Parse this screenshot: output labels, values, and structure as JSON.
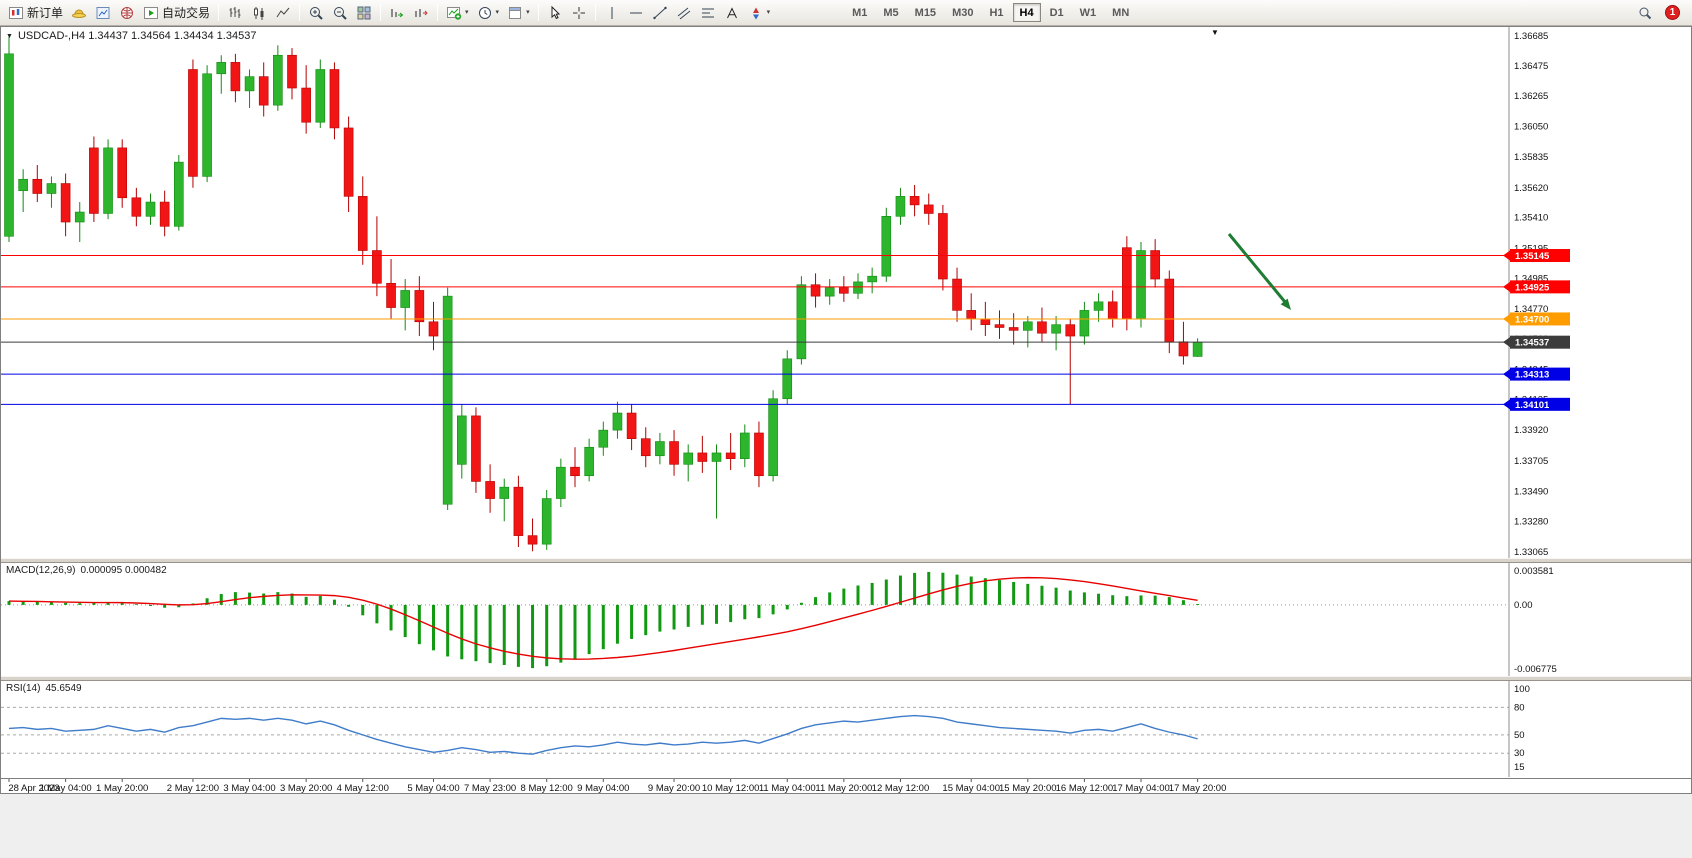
{
  "toolbar": {
    "new_order_label": "新订单",
    "autotrade_label": "自动交易",
    "timeframes": [
      "M1",
      "M5",
      "M15",
      "M30",
      "H1",
      "H4",
      "D1",
      "W1",
      "MN"
    ],
    "active_timeframe": "H4",
    "notification_count": "1",
    "icon_names": [
      "new-order-icon",
      "profiles-icon",
      "market-watch-icon",
      "news-icon",
      "autotrade-icon",
      "bar-chart-icon",
      "candlestick-chart-icon",
      "line-chart-icon",
      "zoom-in-icon",
      "zoom-out-icon",
      "tile-windows-icon",
      "auto-scroll-icon",
      "chart-shift-icon",
      "indicators-icon",
      "periods-icon",
      "templates-icon",
      "cursor-icon",
      "crosshair-icon",
      "vertical-line-icon",
      "horizontal-line-icon",
      "trendline-icon",
      "channel-icon",
      "fibonacci-icon",
      "text-icon",
      "arrows-icon",
      "search-icon"
    ]
  },
  "chart": {
    "symbol_ohlc_label": "USDCAD-,H4 1.34437 1.34564 1.34434 1.34537",
    "symbol": "USDCAD-",
    "period": "H4",
    "open": "1.34437",
    "high": "1.34564",
    "low": "1.34434",
    "close": "1.34537"
  },
  "colors": {
    "bull": "#2db52d",
    "bull_border": "#128a12",
    "bear": "#f21515",
    "bear_border": "#b30000",
    "macd_histogram": "#119a11",
    "macd_signal": "#e80000",
    "rsi_line": "#3f7cc9",
    "axis_text": "#111111",
    "arrow": "#1e7d32"
  },
  "price_axis": {
    "ticks": [
      "1.36685",
      "1.36475",
      "1.36265",
      "1.36050",
      "1.35835",
      "1.35620",
      "1.35410",
      "1.35195",
      "1.34985",
      "1.34770",
      "1.34560",
      "1.34345",
      "1.34135",
      "1.33920",
      "1.33705",
      "1.33490",
      "1.33280",
      "1.33065"
    ]
  },
  "hlines": [
    {
      "label": "1.35145",
      "price": 1.35145,
      "color": "#ff0000",
      "current": false
    },
    {
      "label": "1.34925",
      "price": 1.34925,
      "color": "#ff0000",
      "current": false
    },
    {
      "label": "1.34700",
      "price": 1.347,
      "color": "#ff9c00",
      "current": false
    },
    {
      "label": "1.34537",
      "price": 1.34537,
      "color": "#3c3c3c",
      "current": true
    },
    {
      "label": "1.34313",
      "price": 1.34313,
      "color": "#0000e6",
      "current": false
    },
    {
      "label": "1.34101",
      "price": 1.34101,
      "color": "#0000e6",
      "current": false
    }
  ],
  "time_axis": {
    "labels": [
      {
        "i": 0,
        "t": "28 Apr 2023"
      },
      {
        "i": 4,
        "t": "1 May 04:00"
      },
      {
        "i": 8,
        "t": "1 May 20:00"
      },
      {
        "i": 13,
        "t": "2 May 12:00"
      },
      {
        "i": 17,
        "t": "3 May 04:00"
      },
      {
        "i": 21,
        "t": "3 May 20:00"
      },
      {
        "i": 25,
        "t": "4 May 12:00"
      },
      {
        "i": 30,
        "t": "5 May 04:00"
      },
      {
        "i": 34,
        "t": "7 May 23:00"
      },
      {
        "i": 38,
        "t": "8 May 12:00"
      },
      {
        "i": 42,
        "t": "9 May 04:00"
      },
      {
        "i": 47,
        "t": "9 May 20:00"
      },
      {
        "i": 51,
        "t": "10 May 12:00"
      },
      {
        "i": 55,
        "t": "11 May 04:00"
      },
      {
        "i": 59,
        "t": "11 May 20:00"
      },
      {
        "i": 63,
        "t": "12 May 12:00"
      },
      {
        "i": 68,
        "t": "15 May 04:00"
      },
      {
        "i": 72,
        "t": "15 May 20:00"
      },
      {
        "i": 76,
        "t": "16 May 12:00"
      },
      {
        "i": 80,
        "t": "17 May 04:00"
      },
      {
        "i": 84,
        "t": "17 May 20:00"
      }
    ]
  },
  "chart_data": {
    "type": "candlestick",
    "symbol": "USDCAD",
    "timeframe": "H4",
    "candles": [
      [
        1.3528,
        1.3668,
        1.3524,
        1.3656
      ],
      [
        1.356,
        1.3575,
        1.3545,
        1.3568
      ],
      [
        1.3568,
        1.3578,
        1.3552,
        1.3558
      ],
      [
        1.3558,
        1.357,
        1.3548,
        1.3565
      ],
      [
        1.3565,
        1.3572,
        1.3528,
        1.3538
      ],
      [
        1.3538,
        1.3552,
        1.3524,
        1.3545
      ],
      [
        1.359,
        1.3598,
        1.3538,
        1.3544
      ],
      [
        1.3544,
        1.3596,
        1.354,
        1.359
      ],
      [
        1.359,
        1.3596,
        1.3548,
        1.3555
      ],
      [
        1.3555,
        1.3562,
        1.3535,
        1.3542
      ],
      [
        1.3542,
        1.3558,
        1.3536,
        1.3552
      ],
      [
        1.3552,
        1.356,
        1.3528,
        1.3535
      ],
      [
        1.3535,
        1.3585,
        1.3532,
        1.358
      ],
      [
        1.3645,
        1.3652,
        1.3562,
        1.357
      ],
      [
        1.357,
        1.3648,
        1.3566,
        1.3642
      ],
      [
        1.3642,
        1.3655,
        1.3628,
        1.365
      ],
      [
        1.365,
        1.3656,
        1.3622,
        1.363
      ],
      [
        1.363,
        1.3645,
        1.3618,
        1.364
      ],
      [
        1.364,
        1.365,
        1.3612,
        1.362
      ],
      [
        1.362,
        1.3662,
        1.3616,
        1.3655
      ],
      [
        1.3655,
        1.366,
        1.3624,
        1.3632
      ],
      [
        1.3632,
        1.3648,
        1.36,
        1.3608
      ],
      [
        1.3608,
        1.3652,
        1.3604,
        1.3645
      ],
      [
        1.3645,
        1.365,
        1.3596,
        1.3604
      ],
      [
        1.3604,
        1.3612,
        1.3545,
        1.3556
      ],
      [
        1.3556,
        1.357,
        1.3508,
        1.3518
      ],
      [
        1.3518,
        1.3542,
        1.3486,
        1.3495
      ],
      [
        1.3495,
        1.3512,
        1.347,
        1.3478
      ],
      [
        1.3478,
        1.3498,
        1.3462,
        1.349
      ],
      [
        1.349,
        1.35,
        1.3458,
        1.3468
      ],
      [
        1.3468,
        1.3482,
        1.3448,
        1.3458
      ],
      [
        1.334,
        1.3492,
        1.3336,
        1.3486
      ],
      [
        1.3368,
        1.341,
        1.3358,
        1.3402
      ],
      [
        1.3402,
        1.3408,
        1.3348,
        1.3356
      ],
      [
        1.3356,
        1.3368,
        1.3334,
        1.3344
      ],
      [
        1.3344,
        1.3358,
        1.3328,
        1.3352
      ],
      [
        1.3352,
        1.336,
        1.331,
        1.3318
      ],
      [
        1.3318,
        1.333,
        1.3307,
        1.3312
      ],
      [
        1.3312,
        1.335,
        1.3308,
        1.3344
      ],
      [
        1.3344,
        1.3372,
        1.3338,
        1.3366
      ],
      [
        1.3366,
        1.338,
        1.3352,
        1.336
      ],
      [
        1.336,
        1.3386,
        1.3356,
        1.338
      ],
      [
        1.338,
        1.3398,
        1.3374,
        1.3392
      ],
      [
        1.3392,
        1.3412,
        1.3386,
        1.3404
      ],
      [
        1.3404,
        1.341,
        1.3378,
        1.3386
      ],
      [
        1.3386,
        1.3394,
        1.3366,
        1.3374
      ],
      [
        1.3374,
        1.339,
        1.3368,
        1.3384
      ],
      [
        1.3384,
        1.3392,
        1.336,
        1.3368
      ],
      [
        1.3368,
        1.3382,
        1.3356,
        1.3376
      ],
      [
        1.3376,
        1.3388,
        1.3362,
        1.337
      ],
      [
        1.337,
        1.3382,
        1.333,
        1.3376
      ],
      [
        1.3376,
        1.339,
        1.3364,
        1.3372
      ],
      [
        1.3372,
        1.3396,
        1.3366,
        1.339
      ],
      [
        1.339,
        1.3398,
        1.3352,
        1.336
      ],
      [
        1.336,
        1.342,
        1.3356,
        1.3414
      ],
      [
        1.3414,
        1.3448,
        1.341,
        1.3442
      ],
      [
        1.3442,
        1.35,
        1.3438,
        1.3494
      ],
      [
        1.3494,
        1.3502,
        1.3478,
        1.3486
      ],
      [
        1.3486,
        1.3498,
        1.348,
        1.3492
      ],
      [
        1.3492,
        1.35,
        1.3482,
        1.3488
      ],
      [
        1.3488,
        1.3502,
        1.3484,
        1.3496
      ],
      [
        1.3496,
        1.3506,
        1.3488,
        1.35
      ],
      [
        1.35,
        1.3548,
        1.3496,
        1.3542
      ],
      [
        1.3542,
        1.3562,
        1.3536,
        1.3556
      ],
      [
        1.3556,
        1.3564,
        1.3542,
        1.355
      ],
      [
        1.355,
        1.3558,
        1.3536,
        1.3544
      ],
      [
        1.3544,
        1.355,
        1.349,
        1.3498
      ],
      [
        1.3498,
        1.3506,
        1.3468,
        1.3476
      ],
      [
        1.3476,
        1.3488,
        1.3462,
        1.347
      ],
      [
        1.347,
        1.3482,
        1.3458,
        1.3466
      ],
      [
        1.3466,
        1.3476,
        1.3456,
        1.3464
      ],
      [
        1.3464,
        1.3474,
        1.3452,
        1.3462
      ],
      [
        1.3462,
        1.3472,
        1.345,
        1.3468
      ],
      [
        1.3468,
        1.3478,
        1.3454,
        1.346
      ],
      [
        1.346,
        1.3472,
        1.3448,
        1.3466
      ],
      [
        1.3466,
        1.347,
        1.341,
        1.3458
      ],
      [
        1.3458,
        1.3482,
        1.3452,
        1.3476
      ],
      [
        1.3476,
        1.3488,
        1.3468,
        1.3482
      ],
      [
        1.3482,
        1.349,
        1.3464,
        1.347
      ],
      [
        1.352,
        1.3528,
        1.3462,
        1.347
      ],
      [
        1.347,
        1.3524,
        1.3464,
        1.3518
      ],
      [
        1.3518,
        1.3526,
        1.3492,
        1.3498
      ],
      [
        1.3498,
        1.3504,
        1.3446,
        1.3454
      ],
      [
        1.3454,
        1.3468,
        1.3438,
        1.3444
      ],
      [
        1.34437,
        1.34564,
        1.34434,
        1.34537
      ]
    ],
    "indicators": {
      "macd": {
        "label": "MACD(12,26,9)",
        "values_label": "0.000095 0.000482",
        "macd_value": 9.5e-05,
        "signal_value": 0.000482,
        "axis": [
          "0.003581",
          "0.00",
          "-0.006775"
        ],
        "histogram": [
          0.0004,
          0.00035,
          0.00032,
          0.00028,
          0.00022,
          0.00018,
          0.00025,
          0.0003,
          0.00022,
          8e-05,
          -0.00012,
          -0.0003,
          -0.00025,
          0.00015,
          0.0007,
          0.00115,
          0.00135,
          0.0013,
          0.0012,
          0.00135,
          0.0012,
          0.00085,
          0.00095,
          0.00055,
          -0.0002,
          -0.0011,
          -0.00195,
          -0.0027,
          -0.0034,
          -0.00415,
          -0.0048,
          -0.00545,
          -0.00575,
          -0.00595,
          -0.00615,
          -0.00635,
          -0.00655,
          -0.00668,
          -0.00648,
          -0.0061,
          -0.00568,
          -0.0052,
          -0.00468,
          -0.0041,
          -0.0036,
          -0.0032,
          -0.00282,
          -0.0026,
          -0.00232,
          -0.0021,
          -0.002,
          -0.00182,
          -0.00152,
          -0.0014,
          -0.001,
          -0.00048,
          0.00022,
          0.00082,
          0.00132,
          0.00172,
          0.00205,
          0.00232,
          0.00268,
          0.0031,
          0.00338,
          0.00348,
          0.0034,
          0.0032,
          0.003,
          0.00282,
          0.00262,
          0.00242,
          0.00222,
          0.00202,
          0.00182,
          0.00152,
          0.00132,
          0.00118,
          0.00102,
          0.00092,
          0.001,
          0.00098,
          0.00082,
          0.0005,
          9.5e-05
        ],
        "signal": [
          0.0004,
          0.00038,
          0.00036,
          0.00033,
          0.0003,
          0.00027,
          0.00025,
          0.00025,
          0.00024,
          0.0002,
          0.00014,
          6e-05,
          0.0,
          2e-05,
          0.00014,
          0.00034,
          0.00056,
          0.00076,
          0.0009,
          0.001,
          0.00106,
          0.00105,
          0.00104,
          0.00098,
          0.0008,
          0.0005,
          8e-05,
          -0.00044,
          -0.00104,
          -0.00168,
          -0.00234,
          -0.003,
          -0.0036,
          -0.00412,
          -0.00454,
          -0.0049,
          -0.0052,
          -0.00544,
          -0.0056,
          -0.0057,
          -0.00574,
          -0.00572,
          -0.00566,
          -0.00556,
          -0.00542,
          -0.00524,
          -0.00504,
          -0.00482,
          -0.00458,
          -0.00434,
          -0.0041,
          -0.00386,
          -0.00362,
          -0.00338,
          -0.00312,
          -0.00284,
          -0.00252,
          -0.00216,
          -0.00178,
          -0.00138,
          -0.00098,
          -0.00058,
          -0.00016,
          0.00028,
          0.00072,
          0.00116,
          0.00158,
          0.00196,
          0.00228,
          0.00254,
          0.00272,
          0.00284,
          0.00288,
          0.00286,
          0.00278,
          0.00264,
          0.00246,
          0.00224,
          0.002,
          0.00174,
          0.00148,
          0.00122,
          0.00098,
          0.00072,
          0.000482
        ]
      },
      "rsi": {
        "label": "RSI(14)",
        "value_label": "45.6549",
        "value": 45.6549,
        "axis": [
          "100",
          "80",
          "50",
          "30",
          "15"
        ],
        "levels": [
          80,
          50,
          30
        ],
        "values": [
          57,
          58,
          56,
          57,
          54,
          55,
          56,
          60,
          57,
          54,
          56,
          53,
          58,
          60,
          64,
          68,
          67,
          68,
          66,
          68,
          66,
          62,
          65,
          61,
          55,
          50,
          45,
          41,
          37,
          34,
          31,
          33,
          36,
          34,
          31,
          32,
          30,
          29,
          33,
          36,
          38,
          37,
          39,
          42,
          40,
          39,
          41,
          39,
          40,
          42,
          41,
          42,
          44,
          41,
          46,
          51,
          57,
          61,
          63,
          65,
          64,
          66,
          68,
          70,
          71,
          70,
          68,
          64,
          62,
          60,
          58,
          57,
          56,
          55,
          54,
          52,
          55,
          56,
          54,
          58,
          62,
          57,
          53,
          50,
          45.65
        ]
      }
    },
    "annotation": {
      "type": "arrow",
      "direction": "down-right",
      "color": "#1e7d32"
    }
  },
  "icons": {
    "caret": "▾",
    "triangle_down": "▼"
  }
}
